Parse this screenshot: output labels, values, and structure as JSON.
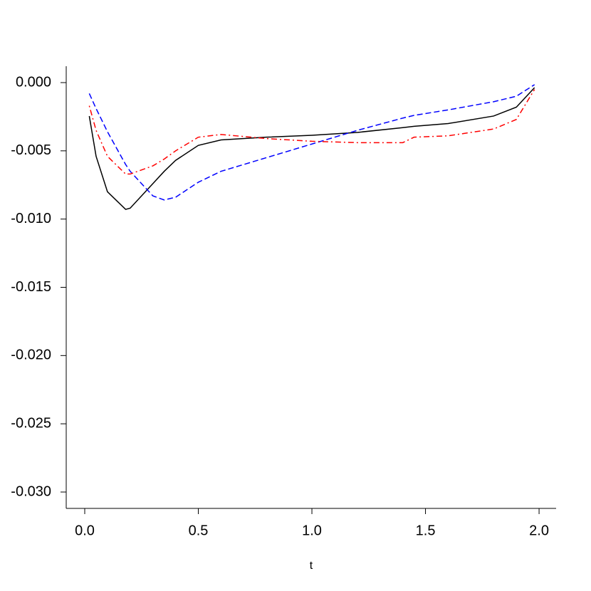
{
  "chart_data": {
    "type": "line",
    "x_label": "t",
    "x": [
      0.02,
      0.05,
      0.1,
      0.18,
      0.2,
      0.3,
      0.35,
      0.4,
      0.5,
      0.6,
      0.8,
      1.0,
      1.2,
      1.4,
      1.45,
      1.6,
      1.8,
      1.9,
      1.98
    ],
    "series": [
      {
        "color": "#000000",
        "dash": "solid",
        "values": [
          -0.00245,
          -0.0054,
          -0.008,
          -0.00929,
          -0.0092,
          -0.0074,
          -0.0065,
          -0.0057,
          -0.0046,
          -0.0042,
          -0.004,
          -0.00386,
          -0.00365,
          -0.0033,
          -0.0032,
          -0.003,
          -0.00245,
          -0.0018,
          -0.00037
        ]
      },
      {
        "color": "#0000ff",
        "dash": "dashed",
        "values": [
          -0.0008,
          -0.0019,
          -0.0036,
          -0.006,
          -0.0065,
          -0.0083,
          -0.0086,
          -0.0084,
          -0.0073,
          -0.0065,
          -0.0055,
          -0.0045,
          -0.0035,
          -0.0026,
          -0.0024,
          -0.002,
          -0.0014,
          -0.001,
          -0.00015
        ]
      },
      {
        "color": "#ff0000",
        "dash": "dotdash",
        "values": [
          -0.0017,
          -0.0035,
          -0.0054,
          -0.0067,
          -0.0067,
          -0.0061,
          -0.0056,
          -0.005,
          -0.004,
          -0.0038,
          -0.0041,
          -0.0043,
          -0.0044,
          -0.0044,
          -0.004,
          -0.0039,
          -0.0034,
          -0.0027,
          -0.0005
        ]
      }
    ],
    "xlim": [
      -0.0815,
      2.075
    ],
    "ylim": [
      -0.0312,
      0.0012
    ],
    "xticks": [
      {
        "value": 0,
        "label": "0.0"
      },
      0.5,
      {
        "value": 1,
        "label": "1.0"
      },
      1.5,
      {
        "value": 2,
        "label": "2.0"
      }
    ],
    "yticks": [
      {
        "value": 0,
        "label": "0.000"
      },
      -0.005,
      {
        "value": -0.01,
        "label": "-0.010"
      },
      -0.015,
      {
        "value": -0.02,
        "label": "-0.020"
      },
      -0.025,
      {
        "value": -0.03,
        "label": "-0.030"
      }
    ]
  }
}
